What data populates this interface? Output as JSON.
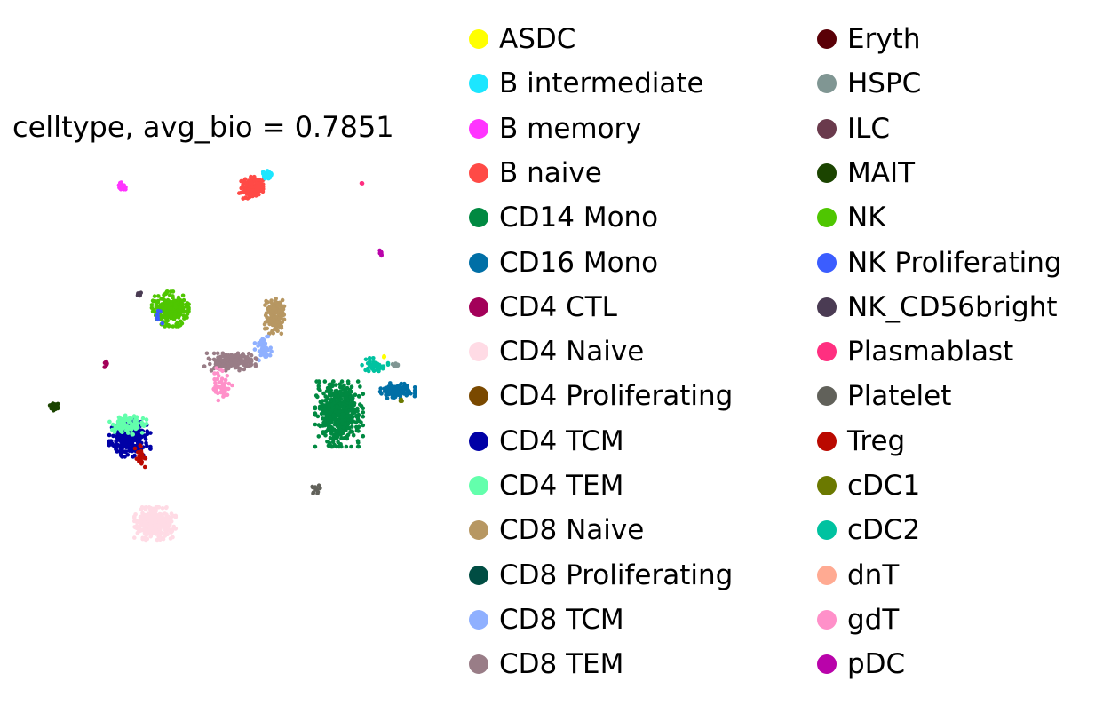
{
  "chart_data": {
    "type": "scatter",
    "title": "celltype, avg_bio = 0.7851",
    "xlabel": "",
    "ylabel": "",
    "grid": false,
    "axes_visible": false,
    "xlim": [
      0,
      440
    ],
    "ylim": [
      -440,
      0
    ],
    "legend_placement": "right",
    "legend_columns": 2,
    "legend": [
      {
        "label": "ASDC",
        "color": "#ffff00"
      },
      {
        "label": "B intermediate",
        "color": "#1ce6ff"
      },
      {
        "label": "B memory",
        "color": "#ff34ff"
      },
      {
        "label": "B naive",
        "color": "#ff4a46"
      },
      {
        "label": "CD14 Mono",
        "color": "#008941"
      },
      {
        "label": "CD16 Mono",
        "color": "#006fa6"
      },
      {
        "label": "CD4 CTL",
        "color": "#a30059"
      },
      {
        "label": "CD4 Naive",
        "color": "#ffdbe5"
      },
      {
        "label": "CD4 Proliferating",
        "color": "#7a4900"
      },
      {
        "label": "CD4 TCM",
        "color": "#0000a6"
      },
      {
        "label": "CD4 TEM",
        "color": "#63ffac"
      },
      {
        "label": "CD8 Naive",
        "color": "#b79762"
      },
      {
        "label": "CD8 Proliferating",
        "color": "#004d43"
      },
      {
        "label": "CD8 TCM",
        "color": "#8fb0ff"
      },
      {
        "label": "CD8 TEM",
        "color": "#997d87"
      },
      {
        "label": "Eryth",
        "color": "#5a0007"
      },
      {
        "label": "HSPC",
        "color": "#809693"
      },
      {
        "label": "ILC",
        "color": "#6a3a4c"
      },
      {
        "label": "MAIT",
        "color": "#1b4400"
      },
      {
        "label": "NK",
        "color": "#4fc601"
      },
      {
        "label": "NK Proliferating",
        "color": "#3b5dff"
      },
      {
        "label": "NK_CD56bright",
        "color": "#4a3b53"
      },
      {
        "label": "Plasmablast",
        "color": "#ff2f80"
      },
      {
        "label": "Platelet",
        "color": "#61615a"
      },
      {
        "label": "Treg",
        "color": "#ba0900"
      },
      {
        "label": "cDC1",
        "color": "#6b7900"
      },
      {
        "label": "cDC2",
        "color": "#00c2a0"
      },
      {
        "label": "dnT",
        "color": "#ffaa92"
      },
      {
        "label": "gdT",
        "color": "#ff90c9"
      },
      {
        "label": "pDC",
        "color": "#b903aa"
      }
    ],
    "clusters": [
      {
        "celltype": "CD14 Mono",
        "center": [
          338,
          -288
        ],
        "spread": [
          22,
          30
        ],
        "count": 520
      },
      {
        "celltype": "CD16 Mono",
        "center": [
          403,
          -262
        ],
        "spread": [
          16,
          7
        ],
        "count": 110
      },
      {
        "celltype": "cDC2",
        "center": [
          378,
          -233
        ],
        "spread": [
          12,
          6
        ],
        "count": 45
      },
      {
        "celltype": "ASDC",
        "center": [
          387,
          -224
        ],
        "spread": [
          2,
          2
        ],
        "count": 3
      },
      {
        "celltype": "HSPC",
        "center": [
          400,
          -233
        ],
        "spread": [
          3,
          3
        ],
        "count": 6
      },
      {
        "celltype": "cDC1",
        "center": [
          407,
          -273
        ],
        "spread": [
          2,
          2
        ],
        "count": 3
      },
      {
        "celltype": "CD8 Naive",
        "center": [
          266,
          -178
        ],
        "spread": [
          9,
          17
        ],
        "count": 140
      },
      {
        "celltype": "CD8 TCM",
        "center": [
          255,
          -215
        ],
        "spread": [
          9,
          11
        ],
        "count": 45
      },
      {
        "celltype": "CD8 TEM",
        "center": [
          217,
          -230
        ],
        "spread": [
          24,
          8
        ],
        "count": 180
      },
      {
        "celltype": "gdT",
        "center": [
          208,
          -255
        ],
        "spread": [
          9,
          15
        ],
        "count": 45
      },
      {
        "celltype": "NK",
        "center": [
          150,
          -171
        ],
        "spread": [
          17,
          16
        ],
        "count": 250
      },
      {
        "celltype": "NK Proliferating",
        "center": [
          137,
          -180
        ],
        "spread": [
          4,
          6
        ],
        "count": 8
      },
      {
        "celltype": "NK_CD56bright",
        "center": [
          116,
          -155
        ],
        "spread": [
          3,
          2
        ],
        "count": 8
      },
      {
        "celltype": "CD4 TCM",
        "center": [
          105,
          -315
        ],
        "spread": [
          19,
          17
        ],
        "count": 260
      },
      {
        "celltype": "CD4 TEM",
        "center": [
          103,
          -300
        ],
        "spread": [
          17,
          9
        ],
        "count": 90
      },
      {
        "celltype": "Treg",
        "center": [
          118,
          -335
        ],
        "spread": [
          6,
          10
        ],
        "count": 20
      },
      {
        "celltype": "CD4 Naive",
        "center": [
          133,
          -410
        ],
        "spread": [
          19,
          15
        ],
        "count": 320
      },
      {
        "celltype": "B naive",
        "center": [
          240,
          -36
        ],
        "spread": [
          11,
          10
        ],
        "count": 150
      },
      {
        "celltype": "B intermediate",
        "center": [
          257,
          -22
        ],
        "spread": [
          5,
          4
        ],
        "count": 30
      },
      {
        "celltype": "B memory",
        "center": [
          96,
          -35
        ],
        "spread": [
          4,
          4
        ],
        "count": 30
      },
      {
        "celltype": "MAIT",
        "center": [
          20,
          -280
        ],
        "spread": [
          4,
          4
        ],
        "count": 35
      },
      {
        "celltype": "CD4 CTL",
        "center": [
          79,
          -232
        ],
        "spread": [
          2,
          4
        ],
        "count": 10
      },
      {
        "celltype": "Platelet",
        "center": [
          313,
          -372
        ],
        "spread": [
          4,
          5
        ],
        "count": 15
      },
      {
        "celltype": "pDC",
        "center": [
          384,
          -109
        ],
        "spread": [
          2,
          4
        ],
        "count": 10
      },
      {
        "celltype": "Plasmablast",
        "center": [
          363,
          -31
        ],
        "spread": [
          1,
          1
        ],
        "count": 3
      }
    ]
  }
}
